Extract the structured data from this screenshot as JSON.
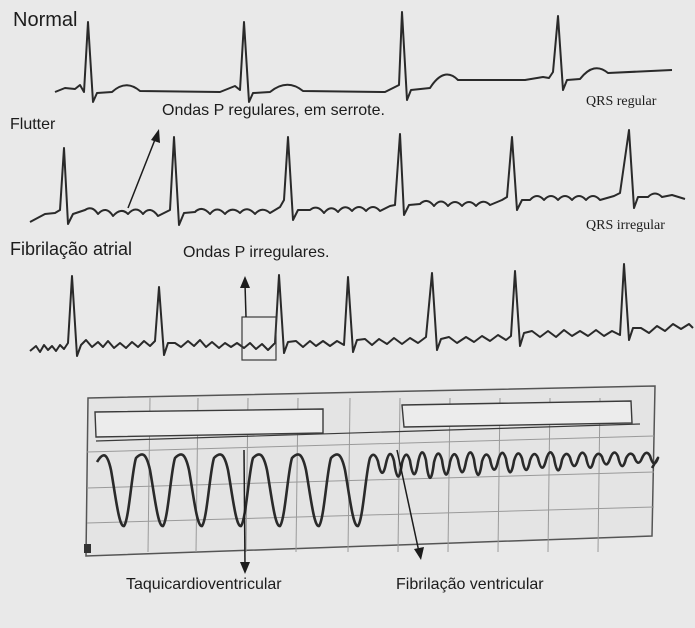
{
  "labels": {
    "normal": "Normal",
    "flutter": "Flutter",
    "fibrilacao_atrial": "Fibrilação atrial",
    "ondas_p_regulares": "Ondas P regulares, em serrote.",
    "ondas_p_irregulares": "Ondas P irregulares.",
    "qrs_regular": "QRS regular",
    "qrs_irregular": "QRS irregular",
    "taquicardio_ventricular": "Taquicardioventricular",
    "fibrilacao_ventricular": "Fibrilação ventricular"
  },
  "colors": {
    "background": "#e9e9e9",
    "trace": "#2a2a2a",
    "grid": "#9a9a9a",
    "strip_bg": "#e4e4e4"
  }
}
